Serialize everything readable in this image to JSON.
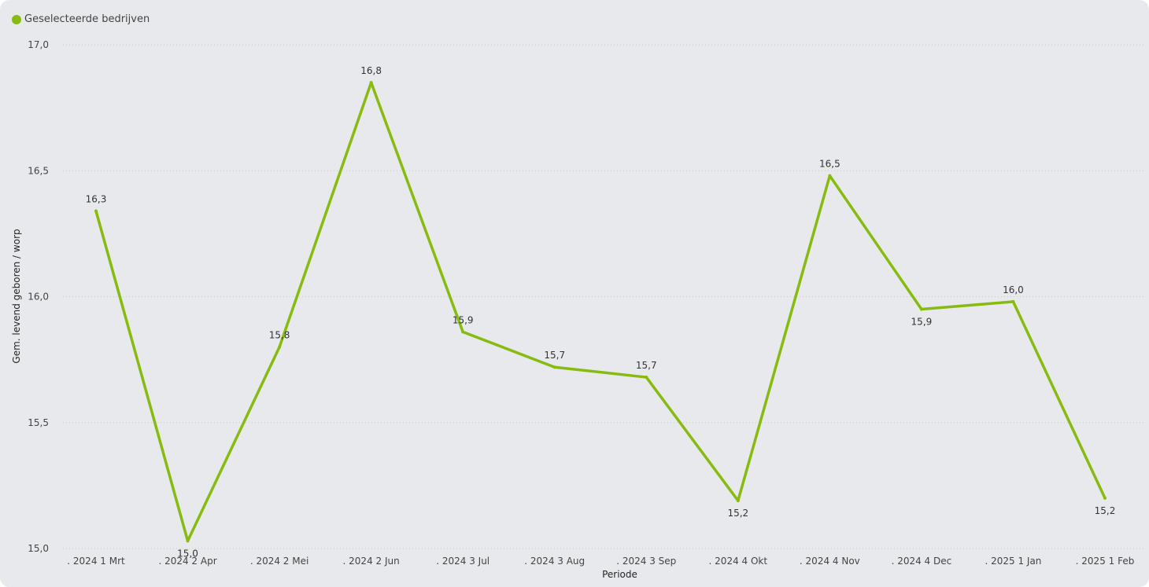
{
  "colors": {
    "series": "#87bb0f",
    "grid": "#c9cacd",
    "background": "#e8e9ec"
  },
  "legend": {
    "label": "Geselecteerde bedrijven",
    "icon": "legend-dot-icon"
  },
  "chart_data": {
    "type": "line",
    "xlabel": "Periode",
    "ylabel": "Gem. levend geboren / worp",
    "ylim": [
      15.0,
      17.0
    ],
    "yticks": [
      15.0,
      15.5,
      16.0,
      16.5,
      17.0
    ],
    "ytick_labels": [
      "15,0",
      "15,5",
      "16,0",
      "16,5",
      "17,0"
    ],
    "grid": "horizontal dotted",
    "legend_position": "top-left",
    "categories": [
      ". 2024 1 Mrt",
      ". 2024 2 Apr",
      ". 2024 2 Mei",
      ". 2024 2 Jun",
      ". 2024 3 Jul",
      ". 2024 3 Aug",
      ". 2024 3 Sep",
      ". 2024 4 Okt",
      ". 2024 4 Nov",
      ". 2024 4 Dec",
      ". 2025 1 Jan",
      ". 2025 1 Feb"
    ],
    "series": [
      {
        "name": "Geselecteerde bedrijven",
        "values": [
          16.34,
          15.03,
          15.8,
          16.85,
          15.86,
          15.72,
          15.68,
          15.19,
          16.48,
          15.95,
          15.98,
          15.2
        ],
        "labels": [
          "16,3",
          "15,0",
          "15,8",
          "16,8",
          "15,9",
          "15,7",
          "15,7",
          "15,2",
          "16,5",
          "15,9",
          "16,0",
          "15,2"
        ]
      }
    ]
  }
}
